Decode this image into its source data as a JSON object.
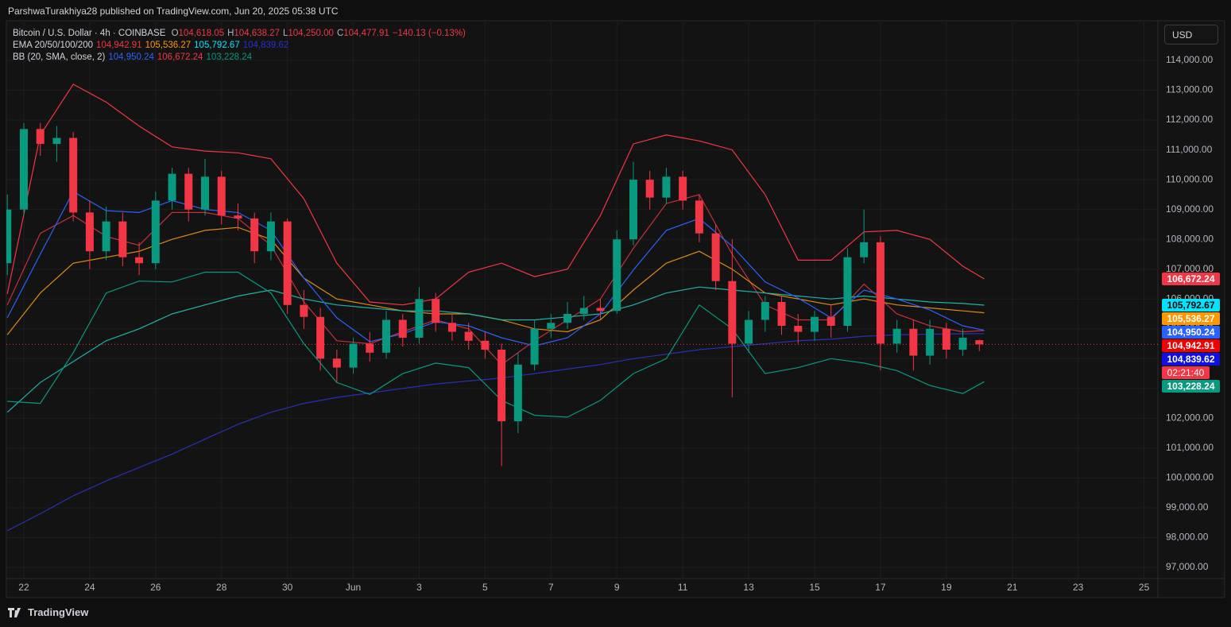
{
  "header": "ParshwaTurakhiya28 published on TradingView.com, Jun 20, 2025 05:38 UTC",
  "currency": "USD",
  "brand": "TradingView",
  "chart_data": {
    "type": "candlestick",
    "legend": {
      "symbol": "Bitcoin / U.S. Dollar · 4h · COINBASE",
      "ohlc": [
        {
          "key": "O",
          "value": "104,618.05"
        },
        {
          "key": "H",
          "value": "104,638.27"
        },
        {
          "key": "L",
          "value": "104,250.00"
        },
        {
          "key": "C",
          "value": "104,477.91"
        }
      ],
      "change": "−140.13 (−0.13%)"
    },
    "xlim": [
      21.47,
      56.42
    ],
    "ylim": [
      96627,
      115279
    ],
    "grid": true,
    "up_color": "#089981",
    "down_color": "#f23645",
    "xticks": [
      22,
      24,
      26,
      28,
      30,
      {
        "value": 32,
        "label": "Jun"
      },
      {
        "value": 34,
        "label": "3"
      },
      {
        "value": 36,
        "label": "5"
      },
      {
        "value": 38,
        "label": "7"
      },
      {
        "value": 40,
        "label": "9"
      },
      {
        "value": 42,
        "label": "11"
      },
      {
        "value": 44,
        "label": "13"
      },
      {
        "value": 46,
        "label": "15"
      },
      {
        "value": 48,
        "label": "17"
      },
      {
        "value": 50,
        "label": "19"
      },
      {
        "value": 52,
        "label": "21"
      },
      {
        "value": 54,
        "label": "23"
      },
      {
        "value": 56,
        "label": "25"
      }
    ],
    "yticks": [
      {
        "value": 97000,
        "label": "97,000.00"
      },
      {
        "value": 98000,
        "label": "98,000.00"
      },
      {
        "value": 99000,
        "label": "99,000.00"
      },
      {
        "value": 100000,
        "label": "100,000.00"
      },
      {
        "value": 101000,
        "label": "101,000.00"
      },
      {
        "value": 102000,
        "label": "102,000.00"
      },
      {
        "value": 103000,
        "label": "103,000.00"
      },
      {
        "value": 104000,
        "label": "104,000.00"
      },
      {
        "value": 105000,
        "label": "105,000.00"
      },
      {
        "value": 106000,
        "label": "106,000.00"
      },
      {
        "value": 107000,
        "label": "107,000.00"
      },
      {
        "value": 108000,
        "label": "108,000.00"
      },
      {
        "value": 109000,
        "label": "109,000.00"
      },
      {
        "value": 110000,
        "label": "110,000.00"
      },
      {
        "value": 111000,
        "label": "111,000.00"
      },
      {
        "value": 112000,
        "label": "112,000.00"
      },
      {
        "value": 113000,
        "label": "113,000.00"
      },
      {
        "value": 114000,
        "label": "114,000.00"
      }
    ],
    "x": [
      21.5,
      22,
      22.5,
      23,
      23.5,
      24,
      24.5,
      25,
      25.5,
      26,
      26.5,
      27,
      27.5,
      28,
      28.5,
      29,
      29.5,
      30,
      30.5,
      31,
      31.5,
      32,
      32.5,
      33,
      33.5,
      34,
      34.5,
      35,
      35.5,
      36,
      36.5,
      37,
      37.5,
      38,
      38.5,
      39,
      39.5,
      40,
      40.5,
      41,
      41.5,
      42,
      42.5,
      43,
      43.5,
      44,
      44.5,
      45,
      45.5,
      46,
      46.5,
      47,
      47.5,
      48,
      48.5,
      49,
      49.5,
      50,
      50.5,
      51
    ],
    "open": [
      107200,
      109000,
      111700,
      111200,
      111400,
      108900,
      107600,
      108600,
      107400,
      107200,
      109300,
      110200,
      109000,
      110100,
      108800,
      108700,
      107600,
      108600,
      105800,
      105400,
      104000,
      103700,
      104500,
      104200,
      105300,
      104700,
      106000,
      105200,
      104900,
      104600,
      104300,
      101900,
      103800,
      105000,
      105200,
      105500,
      105700,
      105600,
      108000,
      110000,
      109400,
      110100,
      109300,
      108200,
      106600,
      104500,
      105300,
      105900,
      105100,
      104900,
      105400,
      105100,
      107400,
      107900,
      104500,
      105000,
      104100,
      105000,
      104300,
      104618.05
    ],
    "high": [
      109500,
      111900,
      111900,
      111800,
      111600,
      109300,
      109100,
      108900,
      107900,
      109600,
      110400,
      110400,
      110700,
      110300,
      109200,
      108900,
      108900,
      108700,
      106300,
      105700,
      104300,
      104700,
      104900,
      105600,
      105500,
      106400,
      106200,
      105500,
      105200,
      104900,
      104500,
      104200,
      105300,
      105500,
      105900,
      106100,
      106000,
      108300,
      110600,
      110300,
      110400,
      110300,
      109500,
      108500,
      108000,
      105600,
      106100,
      106100,
      105500,
      105600,
      105800,
      107700,
      109000,
      108100,
      105300,
      105300,
      105300,
      105200,
      105000,
      104638.27
    ],
    "low": [
      106800,
      108800,
      110800,
      110600,
      108600,
      107000,
      107300,
      107100,
      106800,
      107000,
      109000,
      108600,
      108800,
      108500,
      108300,
      107200,
      107300,
      105500,
      105000,
      103600,
      103200,
      103500,
      103900,
      104000,
      104400,
      104500,
      104900,
      104600,
      104300,
      104000,
      100400,
      101500,
      103600,
      104700,
      105000,
      105300,
      105300,
      105500,
      107800,
      109000,
      109200,
      109000,
      107900,
      106300,
      102700,
      104200,
      104900,
      104800,
      104500,
      104600,
      104700,
      104900,
      107200,
      103600,
      104200,
      103600,
      103800,
      104000,
      104100,
      104250
    ],
    "close": [
      109000,
      111700,
      111200,
      111400,
      108900,
      107600,
      108600,
      107400,
      107200,
      109300,
      110200,
      109000,
      110100,
      108800,
      108700,
      107600,
      108600,
      105800,
      105400,
      104000,
      103700,
      104500,
      104200,
      105300,
      104700,
      106000,
      105200,
      104900,
      104600,
      104300,
      101900,
      103800,
      105000,
      105200,
      105500,
      105700,
      105600,
      108000,
      110000,
      109400,
      110100,
      109300,
      108200,
      106600,
      104500,
      105300,
      105900,
      105100,
      104900,
      105400,
      105100,
      107400,
      107900,
      104500,
      105000,
      104100,
      105000,
      104300,
      104700,
      104477.91
    ],
    "line_x": [
      21.5,
      22.5,
      23.5,
      24.5,
      25.5,
      26.5,
      27.5,
      28.5,
      29.5,
      30.5,
      31.5,
      32.5,
      33.5,
      34.5,
      35.5,
      36.5,
      37.5,
      38.5,
      39.5,
      40.5,
      41.5,
      42.5,
      43.5,
      44.5,
      45.5,
      46.5,
      47.5,
      48.5,
      49.5,
      50.5,
      51.15
    ],
    "indicators": [
      {
        "label": "EMA 20/50/100/200",
        "lines": [
          {
            "color": "#c4303c",
            "legend_color": "#f23645",
            "legend_value": "104,942.91",
            "values": [
              105800,
              108200,
              108800,
              108100,
              107800,
              108900,
              108900,
              108700,
              107800,
              105900,
              104600,
              104500,
              104900,
              105300,
              105000,
              103800,
              104600,
              105300,
              106000,
              107700,
              109200,
              109500,
              107500,
              105800,
              105300,
              105300,
              106500,
              105500,
              105100,
              104900,
              104942.91
            ]
          },
          {
            "color": "#e08a12",
            "legend_color": "#ff9800",
            "legend_value": "105,536.27",
            "values": [
              104800,
              106200,
              107200,
              107400,
              107600,
              108000,
              108300,
              108400,
              108000,
              106700,
              106000,
              105800,
              105600,
              105500,
              105500,
              105300,
              105000,
              104900,
              105300,
              106300,
              107200,
              107600,
              107000,
              106200,
              106000,
              105800,
              106000,
              105800,
              105700,
              105600,
              105536.27
            ]
          },
          {
            "color": "#1fb3a8",
            "legend_color": "#00e5ff",
            "legend_value": "105,792.67",
            "values": [
              102200,
              103200,
              103900,
              104600,
              105000,
              105500,
              105800,
              106100,
              106300,
              106000,
              105800,
              105700,
              105600,
              105600,
              105500,
              105300,
              105300,
              105400,
              105500,
              105800,
              106200,
              106400,
              106300,
              106200,
              106100,
              106000,
              106100,
              106000,
              105900,
              105850,
              105792.67
            ]
          },
          {
            "color": "#2a2fb8",
            "legend_color": "#2a2fd0",
            "legend_value": "104,839.62",
            "values": [
              98230,
              98800,
              99400,
              99900,
              100350,
              100800,
              101300,
              101800,
              102200,
              102500,
              102700,
              102850,
              103000,
              103150,
              103250,
              103350,
              103500,
              103650,
              103800,
              104000,
              104150,
              104300,
              104400,
              104500,
              104600,
              104650,
              104750,
              104800,
              104820,
              104835,
              104839.62
            ]
          }
        ]
      },
      {
        "label": "BB (20, SMA, close, 2)",
        "lines": [
          {
            "color": "#2962ff",
            "legend_color": "#2962ff",
            "legend_value": "104,950.24",
            "values": [
              105370,
              107500,
              109600,
              108960,
              108900,
              109300,
              109000,
              108900,
              108300,
              106700,
              105370,
              104570,
              104830,
              105230,
              105100,
              104700,
              104430,
              104700,
              105500,
              106970,
              108300,
              108700,
              107770,
              106570,
              106030,
              105370,
              106300,
              106000,
              105630,
              105100,
              104950.24
            ]
          },
          {
            "color": "#f23645",
            "legend_color": "#f23645",
            "legend_value": "106,672.24",
            "values": [
              106170,
              111500,
              113200,
              112600,
              111800,
              111100,
              110960,
              110900,
              110700,
              109360,
              107200,
              105900,
              105800,
              106000,
              106900,
              107200,
              106750,
              107000,
              108800,
              111200,
              111500,
              111300,
              111000,
              109500,
              107300,
              107300,
              108250,
              108300,
              108000,
              107100,
              106672.24
            ]
          },
          {
            "color": "#089981",
            "legend_color": "#089981",
            "legend_value": "103,228.24",
            "values": [
              102570,
              102500,
              104200,
              106200,
              106600,
              106570,
              106900,
              106900,
              106200,
              104500,
              103200,
              102800,
              103500,
              103850,
              103700,
              102600,
              102100,
              102040,
              102600,
              103500,
              104000,
              105800,
              105000,
              103500,
              103700,
              104000,
              103850,
              103600,
              103100,
              102830,
              103228.24
            ]
          }
        ]
      }
    ],
    "price_labels": [
      {
        "value": 106672.24,
        "label": "106,672.24",
        "color": "#f23645",
        "text_color": "#ffffff"
      },
      {
        "value": 105792.67,
        "label": "105,792.67",
        "color": "#00e5ff",
        "text_color": "#000000"
      },
      {
        "value": 105536.27,
        "label": "105,536.27",
        "color": "#ff9800",
        "text_color": "#ffffff"
      },
      {
        "value": 104950.24,
        "label": "104,950.24",
        "color": "#2962ff",
        "text_color": "#ffffff"
      },
      {
        "value": 104942.91,
        "label": "104,942.91",
        "color": "#f20000",
        "text_color": "#ffffff"
      },
      {
        "value": 104839.62,
        "label": "104,839.62",
        "color": "#1010e0",
        "text_color": "#ffffff"
      },
      {
        "value": 103228.24,
        "label": "103,228.24",
        "color": "#089981",
        "text_color": "#ffffff"
      }
    ],
    "last_price": {
      "value": 104477.91,
      "countdown": "02:21:40",
      "color": "#f23645"
    }
  }
}
